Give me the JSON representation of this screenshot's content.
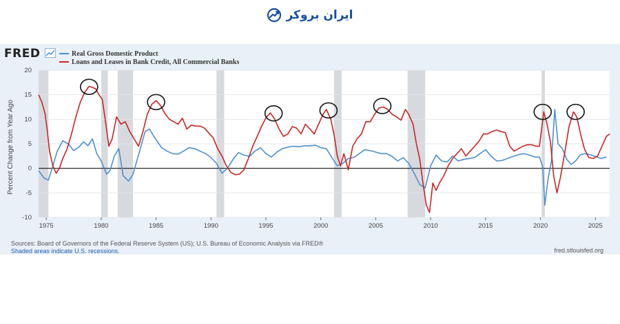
{
  "brand": {
    "name": "ایران بروکر",
    "icon": "trend-up-logo-icon",
    "color": "#1a4fa3"
  },
  "fred": {
    "logo": "FRED",
    "logo_icon": "fred-line-chart-icon"
  },
  "footer": {
    "sources": "Sources: Board of Governors of the Federal Reserve System (US); U.S. Bureau of Economic Analysis via FRED®",
    "recessions": "Shaded areas indicate U.S. recessions.",
    "url": "fred.stlouisfed.org"
  },
  "chart_data": {
    "type": "line",
    "ylabel": "Percent Change from Year Ago",
    "xlim": [
      1974.3,
      2026.3
    ],
    "ylim": [
      -10,
      20
    ],
    "yticks": [
      20,
      15,
      10,
      5,
      0,
      -5,
      -10
    ],
    "xticks": [
      1975,
      1980,
      1985,
      1990,
      1995,
      2000,
      2005,
      2010,
      2015,
      2020,
      2025
    ],
    "grid": true,
    "legend_position": "top-left",
    "recessions": [
      [
        1974.3,
        1975.2
      ],
      [
        1980.0,
        1980.6
      ],
      [
        1981.5,
        1982.9
      ],
      [
        1990.5,
        1991.2
      ],
      [
        2001.2,
        2001.9
      ],
      [
        2007.9,
        2009.5
      ],
      [
        2020.1,
        2020.4
      ]
    ],
    "series": [
      {
        "name": "Real Gross Domestic Product",
        "color": "#4a90d2",
        "points": [
          [
            1974.3,
            -0.5
          ],
          [
            1974.8,
            -2.0
          ],
          [
            1975.2,
            -2.4
          ],
          [
            1975.6,
            0.5
          ],
          [
            1976.0,
            3.5
          ],
          [
            1976.5,
            5.6
          ],
          [
            1977.0,
            5.0
          ],
          [
            1977.5,
            3.6
          ],
          [
            1978.0,
            4.4
          ],
          [
            1978.4,
            5.4
          ],
          [
            1978.8,
            4.6
          ],
          [
            1979.2,
            6.0
          ],
          [
            1979.6,
            3.0
          ],
          [
            1980.0,
            1.5
          ],
          [
            1980.5,
            -1.2
          ],
          [
            1980.8,
            -0.5
          ],
          [
            1981.2,
            2.5
          ],
          [
            1981.6,
            4.0
          ],
          [
            1982.0,
            -1.5
          ],
          [
            1982.5,
            -2.6
          ],
          [
            1982.9,
            -1.2
          ],
          [
            1983.5,
            3.5
          ],
          [
            1984.0,
            7.5
          ],
          [
            1984.4,
            8.0
          ],
          [
            1984.8,
            6.5
          ],
          [
            1985.5,
            4.2
          ],
          [
            1986.0,
            3.5
          ],
          [
            1986.5,
            3.0
          ],
          [
            1987.0,
            2.9
          ],
          [
            1987.5,
            3.5
          ],
          [
            1988.0,
            4.2
          ],
          [
            1988.5,
            4.0
          ],
          [
            1989.0,
            3.5
          ],
          [
            1989.5,
            3.0
          ],
          [
            1990.0,
            2.2
          ],
          [
            1990.5,
            1.0
          ],
          [
            1991.0,
            -1.0
          ],
          [
            1991.5,
            0.0
          ],
          [
            1992.0,
            1.8
          ],
          [
            1992.5,
            3.2
          ],
          [
            1993.0,
            2.7
          ],
          [
            1993.5,
            2.4
          ],
          [
            1994.0,
            3.5
          ],
          [
            1994.5,
            4.2
          ],
          [
            1995.0,
            3.0
          ],
          [
            1995.5,
            2.3
          ],
          [
            1996.0,
            3.3
          ],
          [
            1996.5,
            4.0
          ],
          [
            1997.0,
            4.3
          ],
          [
            1997.5,
            4.5
          ],
          [
            1998.0,
            4.4
          ],
          [
            1998.5,
            4.6
          ],
          [
            1999.0,
            4.6
          ],
          [
            1999.5,
            4.7
          ],
          [
            2000.0,
            4.2
          ],
          [
            2000.5,
            4.0
          ],
          [
            2001.0,
            2.2
          ],
          [
            2001.5,
            0.5
          ],
          [
            2002.0,
            1.0
          ],
          [
            2002.5,
            2.0
          ],
          [
            2003.0,
            2.2
          ],
          [
            2003.5,
            3.0
          ],
          [
            2004.0,
            3.8
          ],
          [
            2004.5,
            3.6
          ],
          [
            2005.0,
            3.3
          ],
          [
            2005.5,
            3.0
          ],
          [
            2006.0,
            3.0
          ],
          [
            2006.5,
            2.4
          ],
          [
            2007.0,
            1.5
          ],
          [
            2007.5,
            2.2
          ],
          [
            2008.0,
            1.0
          ],
          [
            2008.5,
            -1.0
          ],
          [
            2009.0,
            -3.3
          ],
          [
            2009.5,
            -4.0
          ],
          [
            2010.0,
            0.5
          ],
          [
            2010.5,
            2.7
          ],
          [
            2011.0,
            1.5
          ],
          [
            2011.5,
            1.3
          ],
          [
            2012.0,
            2.5
          ],
          [
            2012.5,
            1.5
          ],
          [
            2013.0,
            1.8
          ],
          [
            2013.5,
            2.0
          ],
          [
            2014.0,
            2.2
          ],
          [
            2014.5,
            3.0
          ],
          [
            2015.0,
            3.8
          ],
          [
            2015.5,
            2.5
          ],
          [
            2016.0,
            1.5
          ],
          [
            2016.5,
            1.6
          ],
          [
            2017.0,
            2.0
          ],
          [
            2017.5,
            2.4
          ],
          [
            2018.0,
            2.8
          ],
          [
            2018.5,
            3.0
          ],
          [
            2019.0,
            2.7
          ],
          [
            2019.5,
            2.3
          ],
          [
            2019.9,
            2.3
          ],
          [
            2020.2,
            0.3
          ],
          [
            2020.4,
            -7.5
          ],
          [
            2020.7,
            -2.0
          ],
          [
            2021.0,
            1.5
          ],
          [
            2021.3,
            12.0
          ],
          [
            2021.6,
            5.0
          ],
          [
            2022.0,
            4.0
          ],
          [
            2022.4,
            1.8
          ],
          [
            2022.8,
            0.8
          ],
          [
            2023.2,
            1.5
          ],
          [
            2023.6,
            2.7
          ],
          [
            2024.0,
            3.0
          ],
          [
            2024.5,
            2.8
          ],
          [
            2025.0,
            2.4
          ],
          [
            2025.5,
            2.0
          ],
          [
            2026.0,
            2.3
          ]
        ]
      },
      {
        "name": "Loans and Leases in Bank Credit, All Commercial Banks",
        "color": "#cc2222",
        "points": [
          [
            1974.3,
            15
          ],
          [
            1974.6,
            13.5
          ],
          [
            1974.9,
            11
          ],
          [
            1975.1,
            7.5
          ],
          [
            1975.3,
            3.5
          ],
          [
            1975.6,
            0.5
          ],
          [
            1975.9,
            -1.0
          ],
          [
            1976.2,
            0.0
          ],
          [
            1976.5,
            2.0
          ],
          [
            1976.9,
            4.0
          ],
          [
            1977.3,
            7.0
          ],
          [
            1977.7,
            10.5
          ],
          [
            1978.1,
            13.5
          ],
          [
            1978.5,
            15.5
          ],
          [
            1978.9,
            16.7
          ],
          [
            1979.2,
            16.5
          ],
          [
            1979.5,
            16.2
          ],
          [
            1979.8,
            15.0
          ],
          [
            1980.1,
            14.0
          ],
          [
            1980.4,
            9.5
          ],
          [
            1980.7,
            4.5
          ],
          [
            1981.0,
            6.0
          ],
          [
            1981.4,
            10.5
          ],
          [
            1981.8,
            9.0
          ],
          [
            1982.2,
            9.5
          ],
          [
            1982.6,
            7.5
          ],
          [
            1983.0,
            6.0
          ],
          [
            1983.4,
            4.5
          ],
          [
            1983.8,
            7.5
          ],
          [
            1984.2,
            11.0
          ],
          [
            1984.6,
            13.0
          ],
          [
            1985.0,
            13.8
          ],
          [
            1985.4,
            12.8
          ],
          [
            1985.8,
            11.2
          ],
          [
            1986.2,
            10.0
          ],
          [
            1986.6,
            9.5
          ],
          [
            1987.0,
            9.0
          ],
          [
            1987.4,
            10.2
          ],
          [
            1987.8,
            8.0
          ],
          [
            1988.2,
            8.8
          ],
          [
            1988.6,
            8.6
          ],
          [
            1989.0,
            8.6
          ],
          [
            1989.4,
            8.2
          ],
          [
            1989.8,
            7.2
          ],
          [
            1990.2,
            6.2
          ],
          [
            1990.6,
            4.0
          ],
          [
            1991.0,
            2.5
          ],
          [
            1991.4,
            0.5
          ],
          [
            1991.8,
            -0.8
          ],
          [
            1992.2,
            -1.3
          ],
          [
            1992.6,
            -1.2
          ],
          [
            1993.0,
            -0.3
          ],
          [
            1993.4,
            2.0
          ],
          [
            1993.8,
            4.5
          ],
          [
            1994.2,
            6.5
          ],
          [
            1994.6,
            8.5
          ],
          [
            1995.0,
            10.3
          ],
          [
            1995.4,
            11.3
          ],
          [
            1995.8,
            10.0
          ],
          [
            1996.2,
            8.0
          ],
          [
            1996.6,
            6.5
          ],
          [
            1997.0,
            7.0
          ],
          [
            1997.4,
            8.5
          ],
          [
            1997.8,
            8.2
          ],
          [
            1998.2,
            7.0
          ],
          [
            1998.6,
            9.0
          ],
          [
            1999.0,
            8.0
          ],
          [
            1999.4,
            7.0
          ],
          [
            1999.8,
            9.0
          ],
          [
            2000.2,
            11.0
          ],
          [
            2000.5,
            12.0
          ],
          [
            2000.9,
            10.0
          ],
          [
            2001.2,
            7.0
          ],
          [
            2001.5,
            2.5
          ],
          [
            2001.8,
            0.5
          ],
          [
            2002.1,
            3.0
          ],
          [
            2002.5,
            -0.3
          ],
          [
            2002.9,
            4.5
          ],
          [
            2003.3,
            6.0
          ],
          [
            2003.7,
            7.0
          ],
          [
            2004.1,
            9.5
          ],
          [
            2004.5,
            9.5
          ],
          [
            2004.9,
            11.0
          ],
          [
            2005.3,
            12.3
          ],
          [
            2005.7,
            12.5
          ],
          [
            2006.1,
            12.0
          ],
          [
            2006.5,
            11.0
          ],
          [
            2006.9,
            10.5
          ],
          [
            2007.3,
            9.8
          ],
          [
            2007.7,
            12.0
          ],
          [
            2008.0,
            11.0
          ],
          [
            2008.4,
            9.0
          ],
          [
            2008.7,
            5.0
          ],
          [
            2009.0,
            2.0
          ],
          [
            2009.3,
            -3.0
          ],
          [
            2009.6,
            -7.5
          ],
          [
            2009.9,
            -9.0
          ],
          [
            2010.2,
            -3.0
          ],
          [
            2010.5,
            -4.5
          ],
          [
            2010.8,
            -3.0
          ],
          [
            2011.2,
            -1.5
          ],
          [
            2011.6,
            0.5
          ],
          [
            2012.0,
            2.0
          ],
          [
            2012.4,
            3.0
          ],
          [
            2012.8,
            4.0
          ],
          [
            2013.2,
            2.5
          ],
          [
            2013.6,
            3.5
          ],
          [
            2014.0,
            4.5
          ],
          [
            2014.4,
            5.5
          ],
          [
            2014.8,
            7.0
          ],
          [
            2015.2,
            7.0
          ],
          [
            2015.6,
            7.5
          ],
          [
            2016.0,
            7.8
          ],
          [
            2016.4,
            7.5
          ],
          [
            2016.8,
            7.3
          ],
          [
            2017.2,
            4.5
          ],
          [
            2017.6,
            3.5
          ],
          [
            2018.0,
            4.0
          ],
          [
            2018.4,
            4.5
          ],
          [
            2018.8,
            4.8
          ],
          [
            2019.2,
            4.8
          ],
          [
            2019.6,
            4.5
          ],
          [
            2019.9,
            4.5
          ],
          [
            2020.1,
            8.0
          ],
          [
            2020.3,
            11.5
          ],
          [
            2020.6,
            9.0
          ],
          [
            2020.9,
            5.5
          ],
          [
            2021.2,
            -1.5
          ],
          [
            2021.5,
            -5.0
          ],
          [
            2021.8,
            -2.0
          ],
          [
            2022.2,
            3.0
          ],
          [
            2022.6,
            8.5
          ],
          [
            2023.0,
            11.5
          ],
          [
            2023.3,
            10.5
          ],
          [
            2023.7,
            6.5
          ],
          [
            2024.0,
            4.0
          ],
          [
            2024.4,
            2.2
          ],
          [
            2024.8,
            2.0
          ],
          [
            2025.2,
            2.5
          ],
          [
            2025.6,
            4.5
          ],
          [
            2026.0,
            6.5
          ],
          [
            2026.3,
            7.0
          ]
        ]
      }
    ],
    "annotations": [
      {
        "type": "circle",
        "x": 1978.9,
        "y": 16.6
      },
      {
        "type": "circle",
        "x": 1985.0,
        "y": 13.5
      },
      {
        "type": "circle",
        "x": 1995.7,
        "y": 11.2
      },
      {
        "type": "circle",
        "x": 2000.7,
        "y": 11.8
      },
      {
        "type": "circle",
        "x": 2005.6,
        "y": 12.7
      },
      {
        "type": "circle",
        "x": 2020.2,
        "y": 11.5
      },
      {
        "type": "circle",
        "x": 2023.2,
        "y": 11.5
      }
    ]
  }
}
